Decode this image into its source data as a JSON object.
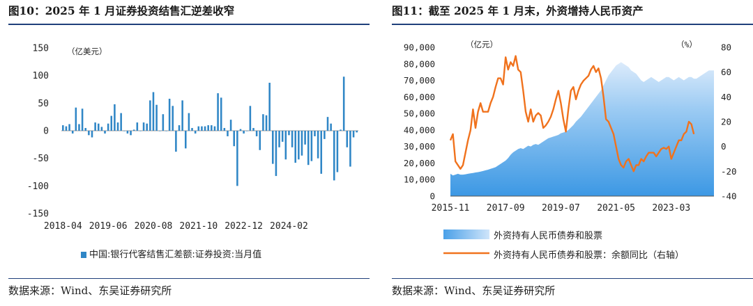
{
  "left": {
    "title": "图10：2025 年 1 月证券投资结售汇逆差收窄",
    "source": "数据来源：Wind、东吴证券研究所",
    "chart_data": {
      "type": "bar",
      "title": "图10：2025 年 1 月证券投资结售汇逆差收窄",
      "unit_label": "（亿美元）",
      "ylim": [
        -150,
        150
      ],
      "yticks": [
        150,
        100,
        50,
        0,
        -50,
        -100,
        -150
      ],
      "xtick_labels": [
        "2018-04",
        "2019-06",
        "2020-08",
        "2021-10",
        "2022-12",
        "2024-02"
      ],
      "xtick_indices": [
        0,
        14,
        28,
        42,
        56,
        70
      ],
      "color": "#2f86c6",
      "series": [
        {
          "name": "中国:银行代客结售汇差额:证券投资:当月值",
          "values": [
            10,
            8,
            12,
            -5,
            42,
            12,
            40,
            5,
            -8,
            -12,
            15,
            13,
            7,
            -5,
            13,
            27,
            48,
            15,
            32,
            0,
            -5,
            -8,
            2,
            15,
            0,
            15,
            13,
            55,
            70,
            47,
            0,
            30,
            0,
            58,
            45,
            -38,
            10,
            55,
            -32,
            32,
            5,
            -5,
            8,
            8,
            8,
            10,
            10,
            8,
            68,
            60,
            5,
            -10,
            20,
            -28,
            -100,
            3,
            -5,
            0,
            45,
            5,
            -10,
            -35,
            30,
            28,
            87,
            -60,
            -82,
            -30,
            -20,
            -52,
            -8,
            -30,
            -58,
            -52,
            -45,
            -25,
            -62,
            -55,
            -10,
            -50,
            -78,
            -15,
            25,
            13,
            -90,
            -75,
            2,
            98,
            -30,
            -65,
            -12,
            -3
          ]
        }
      ]
    }
  },
  "right": {
    "title": "图11：截至 2025 年 1 月末，外资增持人民币资产",
    "source": "数据来源：Wind、东吴证券研究所",
    "chart_data": {
      "type": "area",
      "title": "图11：截至 2025 年 1 月末，外资增持人民币资产",
      "left_unit": "（亿元）",
      "right_unit": "（%）",
      "ylim_left": [
        0,
        90000
      ],
      "ylim_right": [
        -40,
        80
      ],
      "yticks_left": [
        "90,000",
        "80,000",
        "70,000",
        "60,000",
        "50,000",
        "40,000",
        "30,000",
        "20,000",
        "10,000",
        "0"
      ],
      "yticks_right": [
        "80",
        "60",
        "40",
        "20",
        "0",
        "-20",
        "-40"
      ],
      "xtick_labels": [
        "2015-11",
        "2017-09",
        "2019-07",
        "2021-05",
        "2023-03"
      ],
      "xtick_indices": [
        0,
        22,
        44,
        66,
        88
      ],
      "area_color": "#5aa9ea",
      "line_color": "#f0721d",
      "series": [
        {
          "name": "外资持有人民币债券和股票",
          "values": [
            13500,
            12500,
            13000,
            13500,
            13000,
            13000,
            13200,
            13500,
            13800,
            14000,
            14300,
            14500,
            14800,
            15200,
            15600,
            16000,
            16500,
            17000,
            17500,
            18500,
            19500,
            20500,
            21500,
            23000,
            25000,
            26500,
            27500,
            28500,
            29000,
            28500,
            29500,
            30500,
            30000,
            31000,
            31500,
            31000,
            32000,
            33000,
            34000,
            35000,
            35500,
            36000,
            36500,
            37000,
            38000,
            38500,
            39000,
            40000,
            41500,
            43000,
            45000,
            46500,
            48000,
            50000,
            52000,
            54000,
            56000,
            58000,
            60000,
            62000,
            64000,
            67000,
            70000,
            73000,
            75000,
            77000,
            79000,
            80000,
            81000,
            80000,
            79000,
            78000,
            76000,
            75000,
            74000,
            72000,
            70000,
            69000,
            70000,
            71000,
            72000,
            71000,
            70000,
            69000,
            70000,
            71000,
            72000,
            72000,
            71000,
            70000,
            71000,
            72000,
            71000,
            70000,
            71000,
            72000,
            72000,
            71000,
            71000,
            72000,
            73000,
            74000,
            75000,
            76000,
            76000,
            76000
          ]
        },
        {
          "name": "外资持有人民币债券和股票：余额同比（右轴）",
          "values": [
            5,
            10,
            -12,
            -15,
            -18,
            -15,
            -5,
            5,
            13,
            30,
            15,
            28,
            35,
            28,
            28,
            28,
            35,
            40,
            48,
            55,
            55,
            50,
            72,
            62,
            68,
            65,
            73,
            62,
            60,
            45,
            28,
            20,
            30,
            20,
            25,
            27,
            25,
            15,
            17,
            20,
            24,
            30,
            38,
            45,
            35,
            22,
            12,
            30,
            45,
            48,
            38,
            45,
            50,
            53,
            55,
            57,
            62,
            65,
            60,
            63,
            55,
            40,
            22,
            20,
            15,
            10,
            0,
            -10,
            -15,
            -17,
            -12,
            -10,
            -15,
            -20,
            -15,
            -15,
            -10,
            -12,
            -8,
            -5,
            -5,
            -5,
            -8,
            -5,
            -2,
            -1,
            -2,
            0,
            -10,
            -5,
            0,
            5,
            5,
            10,
            12,
            20,
            18,
            10
          ]
        }
      ]
    }
  },
  "legend_left": "中国:银行代客结售汇差额:证券投资:当月值",
  "legend_right_area": "外资持有人民币债券和股票",
  "legend_right_line": "外资持有人民币债券和股票：余额同比（右轴）"
}
